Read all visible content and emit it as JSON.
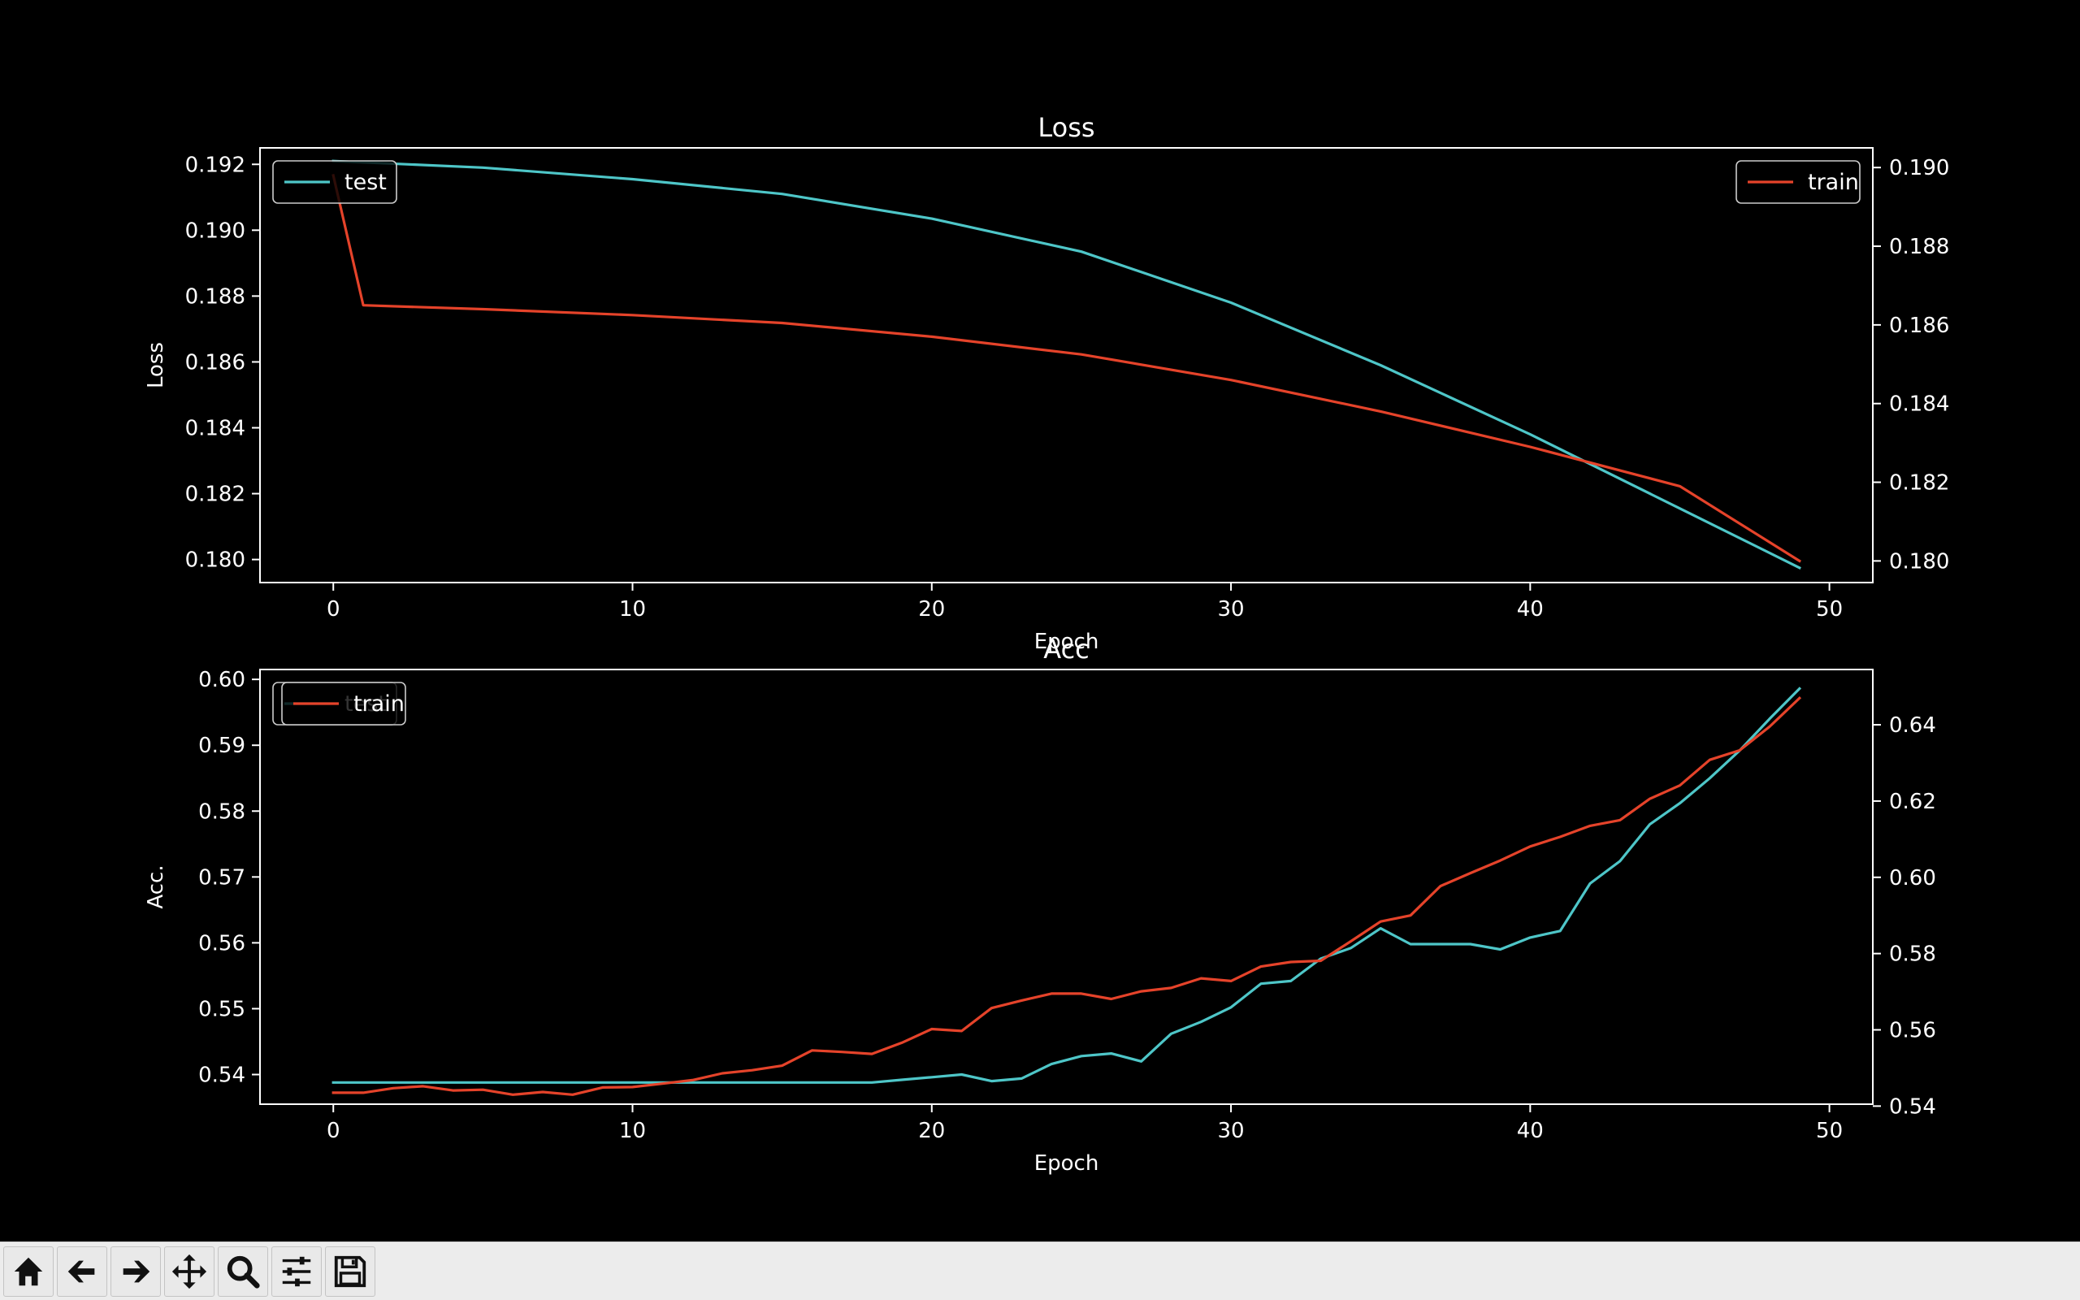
{
  "chart_data": [
    {
      "type": "line",
      "title": "Loss",
      "xlabel": "Epoch",
      "ylabel": "Loss",
      "xlim": [
        -2.45,
        51.45
      ],
      "xticks": [
        0,
        10,
        20,
        30,
        40,
        50
      ],
      "ylim_left": [
        0.1793,
        0.1925
      ],
      "yticks_left": [
        0.18,
        0.182,
        0.184,
        0.186,
        0.188,
        0.19,
        0.192
      ],
      "ylim_right": [
        0.17945,
        0.1905
      ],
      "yticks_right": [
        0.18,
        0.182,
        0.184,
        0.186,
        0.188,
        0.19
      ],
      "grid": false,
      "series": [
        {
          "name": "test",
          "axis": "left",
          "color": "#4ec6c8",
          "x": [
            0,
            5,
            10,
            15,
            20,
            25,
            30,
            35,
            40,
            45,
            49
          ],
          "y": [
            0.1921,
            0.1919,
            0.19155,
            0.1911,
            0.19035,
            0.18935,
            0.1878,
            0.1859,
            0.1838,
            0.18155,
            0.17975
          ]
        },
        {
          "name": "train",
          "axis": "right",
          "color": "#e5432a",
          "x": [
            0,
            1,
            5,
            10,
            15,
            20,
            25,
            30,
            35,
            40,
            45,
            49
          ],
          "y": [
            0.1898,
            0.1865,
            0.1864,
            0.18625,
            0.18605,
            0.1857,
            0.18525,
            0.1846,
            0.1838,
            0.1829,
            0.1819,
            0.18
          ]
        }
      ],
      "legends": [
        {
          "series": "test",
          "placement": "upper-left"
        },
        {
          "series": "train",
          "placement": "upper-right"
        }
      ]
    },
    {
      "type": "line",
      "title": "Acc",
      "xlabel": "Epoch",
      "ylabel": "Acc.",
      "xlim": [
        -2.45,
        51.45
      ],
      "xticks": [
        0,
        10,
        20,
        30,
        40,
        50
      ],
      "ylim_left": [
        0.5355,
        0.6015
      ],
      "yticks_left": [
        0.54,
        0.55,
        0.56,
        0.57,
        0.58,
        0.59,
        0.6
      ],
      "ylim_right": [
        0.5405,
        0.6545
      ],
      "yticks_right": [
        0.54,
        0.56,
        0.58,
        0.6,
        0.62,
        0.64
      ],
      "grid": false,
      "series": [
        {
          "name": "test",
          "axis": "left",
          "color": "#4ec6c8",
          "x": [
            0,
            1,
            2,
            3,
            4,
            5,
            6,
            7,
            8,
            9,
            10,
            11,
            12,
            13,
            14,
            15,
            16,
            17,
            18,
            19,
            20,
            21,
            22,
            23,
            24,
            25,
            26,
            27,
            28,
            29,
            30,
            31,
            32,
            33,
            34,
            35,
            36,
            37,
            38,
            39,
            40,
            41,
            42,
            43,
            44,
            45,
            46,
            47,
            48,
            49
          ],
          "y": [
            0.5388,
            0.5388,
            0.5388,
            0.5388,
            0.5388,
            0.5388,
            0.5388,
            0.5388,
            0.5388,
            0.5388,
            0.5388,
            0.5388,
            0.5388,
            0.5388,
            0.5388,
            0.5388,
            0.5388,
            0.5388,
            0.5388,
            0.5392,
            0.5396,
            0.54,
            0.539,
            0.5394,
            0.5416,
            0.5428,
            0.5432,
            0.542,
            0.5462,
            0.548,
            0.5502,
            0.5538,
            0.5542,
            0.5576,
            0.5592,
            0.5622,
            0.5598,
            0.5598,
            0.5598,
            0.559,
            0.5608,
            0.5618,
            0.569,
            0.5724,
            0.578,
            0.5812,
            0.585,
            0.5892,
            0.594,
            0.5986
          ]
        },
        {
          "name": "train",
          "axis": "right",
          "color": "#e5432a",
          "x": [
            0,
            1,
            2,
            3,
            4,
            5,
            6,
            7,
            8,
            9,
            10,
            11,
            12,
            13,
            14,
            15,
            16,
            17,
            18,
            19,
            20,
            21,
            22,
            23,
            24,
            25,
            26,
            27,
            28,
            29,
            30,
            31,
            32,
            33,
            34,
            35,
            36,
            37,
            38,
            39,
            40,
            41,
            42,
            43,
            44,
            45,
            46,
            47,
            48,
            49
          ],
          "y": [
            0.5435,
            0.5435,
            0.5447,
            0.5452,
            0.5441,
            0.5443,
            0.543,
            0.5437,
            0.543,
            0.5449,
            0.545,
            0.5459,
            0.5468,
            0.5486,
            0.5494,
            0.5506,
            0.5546,
            0.5542,
            0.5537,
            0.5566,
            0.5602,
            0.5597,
            0.5657,
            0.5677,
            0.5695,
            0.5695,
            0.5681,
            0.5701,
            0.571,
            0.5735,
            0.5728,
            0.5766,
            0.5778,
            0.5781,
            0.5832,
            0.5884,
            0.59,
            0.5977,
            0.6011,
            0.6044,
            0.6081,
            0.6106,
            0.6135,
            0.615,
            0.6206,
            0.6241,
            0.6308,
            0.6333,
            0.6395,
            0.647
          ]
        }
      ],
      "legends": [
        {
          "series": "test",
          "placement": "upper-left"
        },
        {
          "series": "train",
          "placement": "upper-left"
        }
      ]
    }
  ],
  "toolbar": {
    "buttons": [
      {
        "name": "home-button",
        "icon": "home-icon"
      },
      {
        "name": "back-button",
        "icon": "arrow-left-icon"
      },
      {
        "name": "forward-button",
        "icon": "arrow-right-icon"
      },
      {
        "name": "pan-button",
        "icon": "move-icon"
      },
      {
        "name": "zoom-button",
        "icon": "magnifier-icon"
      },
      {
        "name": "configure-subplots-button",
        "icon": "sliders-icon"
      },
      {
        "name": "save-button",
        "icon": "floppy-disk-icon"
      }
    ]
  }
}
